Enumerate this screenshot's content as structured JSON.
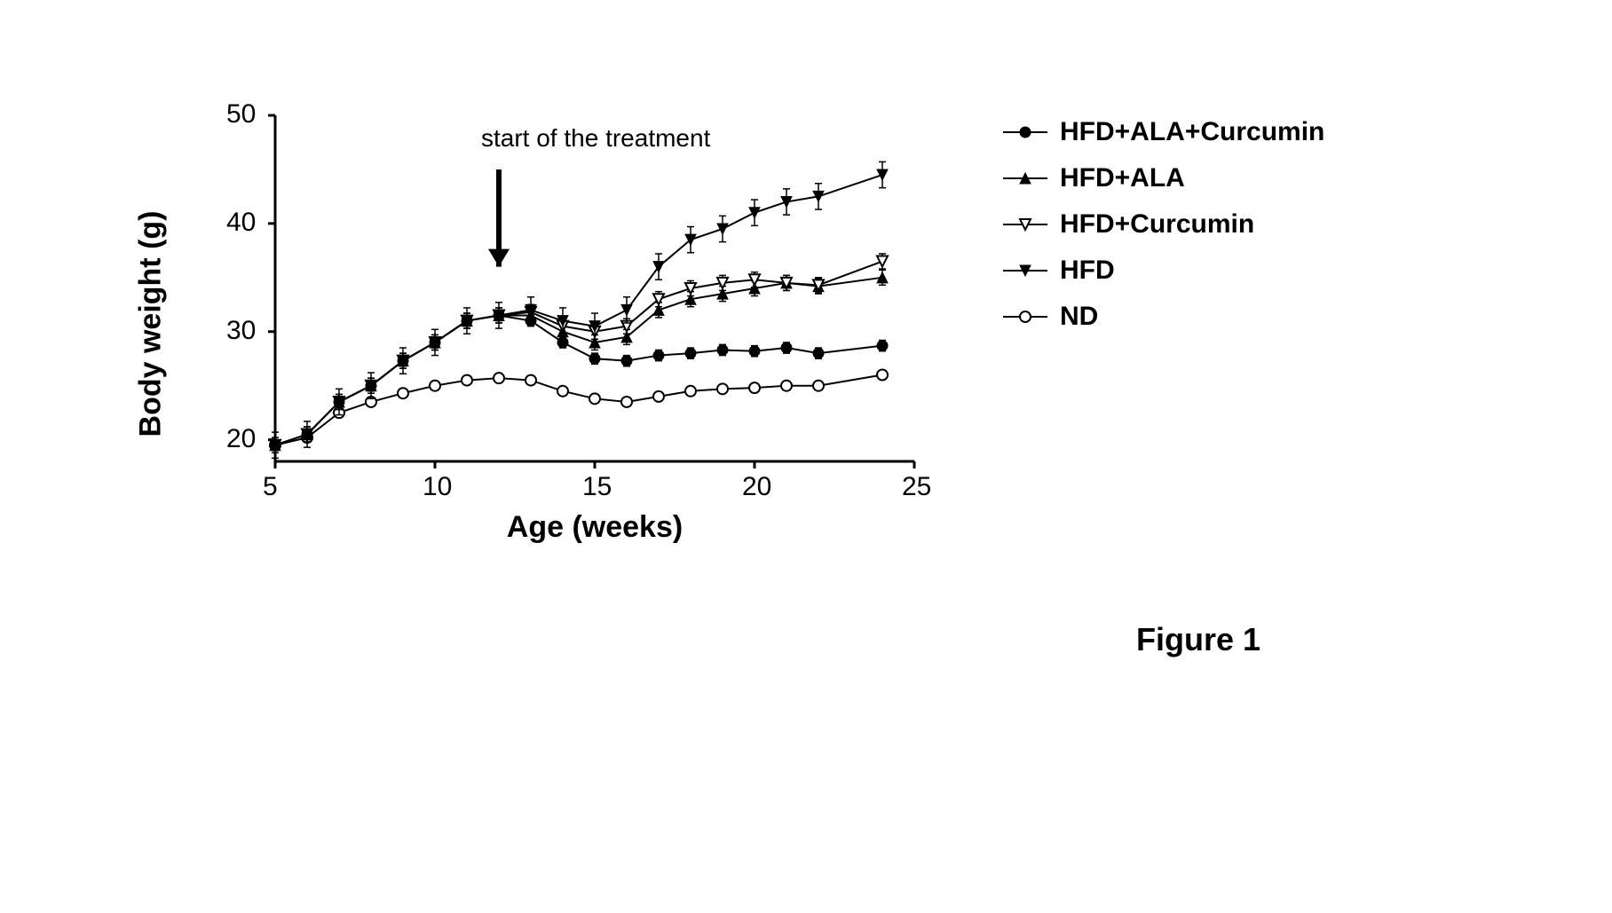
{
  "figure_caption": "Figure 1",
  "chart": {
    "type": "line",
    "xlabel": "Age (weeks)",
    "ylabel": "Body weight (g)",
    "xlim": [
      5,
      25
    ],
    "ylim": [
      18,
      50
    ],
    "xticks": [
      5,
      10,
      15,
      20,
      25
    ],
    "yticks": [
      20,
      30,
      40,
      50
    ],
    "background_color": "#ffffff",
    "axis_color": "#000000",
    "axis_linewidth": 3,
    "tick_length": 8,
    "label_fontsize": 34,
    "tick_fontsize": 30,
    "annotation": {
      "text": "start of the treatment",
      "x": 12,
      "y_text": 48,
      "arrow_from_y": 45,
      "arrow_to_y": 36,
      "fontsize": 28
    },
    "legend": {
      "fontsize": 30,
      "items": [
        {
          "label": "HFD+ALA+Curcumin",
          "marker": "circle-filled",
          "color": "#000000"
        },
        {
          "label": "HFD+ALA",
          "marker": "triangle-up-filled",
          "color": "#000000"
        },
        {
          "label": "HFD+Curcumin",
          "marker": "triangle-down-open",
          "color": "#000000"
        },
        {
          "label": "HFD",
          "marker": "triangle-down-filled",
          "color": "#000000"
        },
        {
          "label": "ND",
          "marker": "circle-open",
          "color": "#000000"
        }
      ]
    },
    "series": [
      {
        "name": "ND",
        "marker": "circle-open",
        "color": "#000000",
        "error_bar": 0.3,
        "data": [
          {
            "x": 5,
            "y": 19.5
          },
          {
            "x": 6,
            "y": 20.2
          },
          {
            "x": 7,
            "y": 22.5
          },
          {
            "x": 8,
            "y": 23.5
          },
          {
            "x": 9,
            "y": 24.3
          },
          {
            "x": 10,
            "y": 25.0
          },
          {
            "x": 11,
            "y": 25.5
          },
          {
            "x": 12,
            "y": 25.7
          },
          {
            "x": 13,
            "y": 25.5
          },
          {
            "x": 14,
            "y": 24.5
          },
          {
            "x": 15,
            "y": 23.8
          },
          {
            "x": 16,
            "y": 23.5
          },
          {
            "x": 17,
            "y": 24.0
          },
          {
            "x": 18,
            "y": 24.5
          },
          {
            "x": 19,
            "y": 24.7
          },
          {
            "x": 20,
            "y": 24.8
          },
          {
            "x": 21,
            "y": 25.0
          },
          {
            "x": 22,
            "y": 25.0
          },
          {
            "x": 24,
            "y": 26.0
          }
        ]
      },
      {
        "name": "HFD+ALA+Curcumin",
        "marker": "circle-filled",
        "color": "#000000",
        "error_bar": 0.5,
        "data": [
          {
            "x": 5,
            "y": 19.5
          },
          {
            "x": 6,
            "y": 20.5
          },
          {
            "x": 7,
            "y": 23.5
          },
          {
            "x": 8,
            "y": 25.0
          },
          {
            "x": 9,
            "y": 27.3
          },
          {
            "x": 10,
            "y": 29.0
          },
          {
            "x": 11,
            "y": 31.0
          },
          {
            "x": 12,
            "y": 31.5
          },
          {
            "x": 13,
            "y": 31.0
          },
          {
            "x": 14,
            "y": 29.0
          },
          {
            "x": 15,
            "y": 27.5
          },
          {
            "x": 16,
            "y": 27.3
          },
          {
            "x": 17,
            "y": 27.8
          },
          {
            "x": 18,
            "y": 28.0
          },
          {
            "x": 19,
            "y": 28.3
          },
          {
            "x": 20,
            "y": 28.2
          },
          {
            "x": 21,
            "y": 28.5
          },
          {
            "x": 22,
            "y": 28.0
          },
          {
            "x": 24,
            "y": 28.7
          }
        ]
      },
      {
        "name": "HFD+ALA",
        "marker": "triangle-up-filled",
        "color": "#000000",
        "error_bar": 0.7,
        "data": [
          {
            "x": 5,
            "y": 19.5
          },
          {
            "x": 6,
            "y": 20.5
          },
          {
            "x": 7,
            "y": 23.5
          },
          {
            "x": 8,
            "y": 25.0
          },
          {
            "x": 9,
            "y": 27.3
          },
          {
            "x": 10,
            "y": 29.0
          },
          {
            "x": 11,
            "y": 31.0
          },
          {
            "x": 12,
            "y": 31.5
          },
          {
            "x": 13,
            "y": 31.5
          },
          {
            "x": 14,
            "y": 30.0
          },
          {
            "x": 15,
            "y": 29.0
          },
          {
            "x": 16,
            "y": 29.5
          },
          {
            "x": 17,
            "y": 32.0
          },
          {
            "x": 18,
            "y": 33.0
          },
          {
            "x": 19,
            "y": 33.5
          },
          {
            "x": 20,
            "y": 34.0
          },
          {
            "x": 21,
            "y": 34.5
          },
          {
            "x": 22,
            "y": 34.2
          },
          {
            "x": 24,
            "y": 35.0
          }
        ]
      },
      {
        "name": "HFD+Curcumin",
        "marker": "triangle-down-open",
        "color": "#000000",
        "error_bar": 0.7,
        "data": [
          {
            "x": 5,
            "y": 19.5
          },
          {
            "x": 6,
            "y": 20.5
          },
          {
            "x": 7,
            "y": 23.5
          },
          {
            "x": 8,
            "y": 25.0
          },
          {
            "x": 9,
            "y": 27.3
          },
          {
            "x": 10,
            "y": 29.0
          },
          {
            "x": 11,
            "y": 31.0
          },
          {
            "x": 12,
            "y": 31.5
          },
          {
            "x": 13,
            "y": 31.8
          },
          {
            "x": 14,
            "y": 30.5
          },
          {
            "x": 15,
            "y": 30.0
          },
          {
            "x": 16,
            "y": 30.5
          },
          {
            "x": 17,
            "y": 33.0
          },
          {
            "x": 18,
            "y": 34.0
          },
          {
            "x": 19,
            "y": 34.5
          },
          {
            "x": 20,
            "y": 34.8
          },
          {
            "x": 21,
            "y": 34.5
          },
          {
            "x": 22,
            "y": 34.3
          },
          {
            "x": 24,
            "y": 36.5
          }
        ]
      },
      {
        "name": "HFD",
        "marker": "triangle-down-filled",
        "color": "#000000",
        "error_bar": 1.2,
        "data": [
          {
            "x": 5,
            "y": 19.5
          },
          {
            "x": 6,
            "y": 20.5
          },
          {
            "x": 7,
            "y": 23.5
          },
          {
            "x": 8,
            "y": 25.0
          },
          {
            "x": 9,
            "y": 27.3
          },
          {
            "x": 10,
            "y": 29.0
          },
          {
            "x": 11,
            "y": 31.0
          },
          {
            "x": 12,
            "y": 31.5
          },
          {
            "x": 13,
            "y": 32.0
          },
          {
            "x": 14,
            "y": 31.0
          },
          {
            "x": 15,
            "y": 30.5
          },
          {
            "x": 16,
            "y": 32.0
          },
          {
            "x": 17,
            "y": 36.0
          },
          {
            "x": 18,
            "y": 38.5
          },
          {
            "x": 19,
            "y": 39.5
          },
          {
            "x": 20,
            "y": 41.0
          },
          {
            "x": 21,
            "y": 42.0
          },
          {
            "x": 22,
            "y": 42.5
          },
          {
            "x": 24,
            "y": 44.5
          }
        ]
      }
    ]
  }
}
